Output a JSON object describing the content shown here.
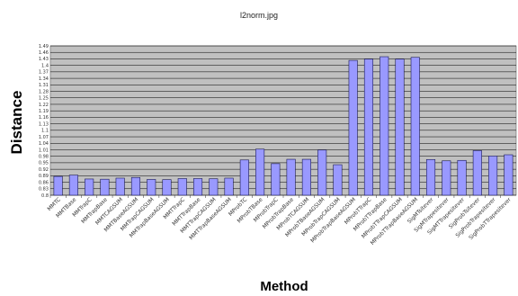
{
  "window": {
    "title": "l2norm.jpg"
  },
  "chart_data": {
    "type": "bar",
    "title": "",
    "xlabel": "Method",
    "ylabel": "Distance",
    "ylim": [
      0.8,
      1.49
    ],
    "yticks": [
      "0.8",
      "0.83",
      "0.86",
      "0.89",
      "0.92",
      "0.95",
      "0.98",
      "1.01",
      "1.04",
      "1.07",
      "1.1",
      "1.13",
      "1.16",
      "1.19",
      "1.22",
      "1.25",
      "1.28",
      "1.31",
      "1.34",
      "1.37",
      "1.4",
      "1.43",
      "1.46",
      "1.49"
    ],
    "grid": true,
    "colors": {
      "bar": "#9999ff",
      "bar_edge": "#1a1a55",
      "plot_bg": "#c0c0c0",
      "gridline": "#000000"
    },
    "categories": [
      "MMTC",
      "MMTBase",
      "MMTrapC",
      "MMTrapBase",
      "MMTCAGSUM",
      "MMTBaseAGSUM",
      "MMTrapCAGSUM",
      "MMTrapBaseAGSUM",
      "MMTTrapC",
      "MMTTrapBase",
      "MMTTrapCAGSUM",
      "MMTTrapBaseAGSUM",
      "MProbTC",
      "MProbTBase",
      "MProbTrapC",
      "MProbTrapBase",
      "MProbTCAGSUM",
      "MProbTBaseAGSUM",
      "MProbTrapCAGSUM",
      "MProbTrapBaseAGSUM",
      "MProbTTrapC",
      "MProbTTrapBase",
      "MProbTTrapCAGSUM",
      "MProbTTrapBaseAGSUM",
      "SigMTsitever",
      "SigMTrapesitever",
      "SigMTTrapesitever",
      "SigProbTsitever",
      "SigProbTrapesitever",
      "SigProbTTrapesitever"
    ],
    "values": [
      0.887,
      0.893,
      0.875,
      0.874,
      0.879,
      0.882,
      0.873,
      0.872,
      0.877,
      0.877,
      0.876,
      0.879,
      0.963,
      1.013,
      0.946,
      0.966,
      0.966,
      1.009,
      0.941,
      1.423,
      1.429,
      1.44,
      1.429,
      1.437,
      0.965,
      0.959,
      0.961,
      1.006,
      0.981,
      0.987
    ]
  }
}
